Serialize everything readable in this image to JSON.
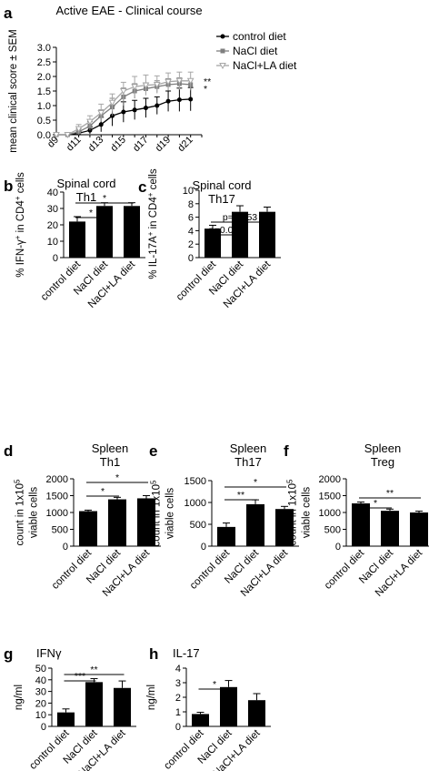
{
  "colors": {
    "black": "#000000",
    "grey1": "#7f7f7f",
    "grey2": "#a6a6a6"
  },
  "chart_data": [
    {
      "id": "a",
      "type": "line",
      "panel_label": "a",
      "title": "Active EAE - Clinical course",
      "ylabel": "mean clinical score ± SEM",
      "ylim": [
        0,
        3
      ],
      "yticks": [
        "0.0",
        "0.5",
        "1.0",
        "1.5",
        "2.0",
        "2.5",
        "3.0"
      ],
      "x": [
        9,
        10,
        11,
        12,
        13,
        14,
        15,
        16,
        17,
        18,
        19,
        20,
        21
      ],
      "xtick_days": [
        9,
        11,
        13,
        15,
        17,
        19,
        21
      ],
      "xtick_labels": [
        "d9",
        "d11",
        "d13",
        "d15",
        "d17",
        "d19",
        "d21"
      ],
      "series": [
        {
          "name": "control diet",
          "marker": "circle",
          "color": "#000000",
          "values": [
            0,
            0,
            0.05,
            0.15,
            0.35,
            0.65,
            0.78,
            0.85,
            0.92,
            1.0,
            1.15,
            1.2,
            1.22
          ],
          "errors": [
            0,
            0,
            0.05,
            0.12,
            0.25,
            0.35,
            0.35,
            0.33,
            0.33,
            0.3,
            0.35,
            0.4,
            0.4
          ]
        },
        {
          "name": "NaCl diet",
          "marker": "square",
          "color": "#7f7f7f",
          "values": [
            0,
            0,
            0.1,
            0.3,
            0.65,
            0.95,
            1.3,
            1.5,
            1.58,
            1.65,
            1.72,
            1.75,
            1.72
          ],
          "errors": [
            0,
            0,
            0.1,
            0.15,
            0.2,
            0.3,
            0.3,
            0.25,
            0.2,
            0.2,
            0.2,
            0.2,
            0.2
          ]
        },
        {
          "name": "NaCl+LA diet",
          "marker": "triangle-down",
          "color": "#a6a6a6",
          "values": [
            0,
            0,
            0.2,
            0.45,
            0.75,
            1.1,
            1.5,
            1.65,
            1.7,
            1.72,
            1.82,
            1.85,
            1.85
          ],
          "errors": [
            0,
            0,
            0.15,
            0.2,
            0.3,
            0.3,
            0.3,
            0.35,
            0.35,
            0.3,
            0.3,
            0.3,
            0.3
          ]
        }
      ],
      "significance": [
        "**",
        "*"
      ]
    },
    {
      "id": "b",
      "type": "bar",
      "panel_label": "b",
      "title": "Spinal cord",
      "subtitle": "Th1",
      "ylabel_pre": "% IFN-γ",
      "ylabel_sup": "+",
      "ylabel_mid": " in CD4",
      "ylabel_sup2": "+",
      "ylabel_post": " cells",
      "ylim": [
        0,
        40
      ],
      "yticks": [
        "0",
        "10",
        "20",
        "30",
        "40"
      ],
      "categories": [
        "control diet",
        "NaCl diet",
        "NaCl+LA diet"
      ],
      "values": [
        22,
        31.5,
        31.5
      ],
      "errors": [
        3,
        2,
        2
      ],
      "comparisons": [
        {
          "from": 0,
          "to": 1,
          "label": "*"
        },
        {
          "from": 0,
          "to": 2,
          "label": "*"
        }
      ]
    },
    {
      "id": "c",
      "type": "bar",
      "panel_label": "c",
      "title": "Spinal cord",
      "subtitle": "Th17",
      "ylabel_pre": "% IL-17A",
      "ylabel_sup": "+",
      "ylabel_mid": " in CD4",
      "ylabel_sup2": "+",
      "ylabel_post": " cells",
      "ylim": [
        0,
        10
      ],
      "yticks": [
        "0",
        "2",
        "4",
        "6",
        "8",
        "10"
      ],
      "categories": [
        "control diet",
        "NaCl diet",
        "NaCl+LA diet"
      ],
      "values": [
        4.3,
        6.8,
        6.8
      ],
      "errors": [
        0.5,
        0.9,
        0.7
      ],
      "comparisons": [
        {
          "from": 0,
          "to": 1,
          "label": "p=0.058"
        },
        {
          "from": 0,
          "to": 2,
          "label": "p=0.053"
        }
      ]
    },
    {
      "id": "d",
      "type": "bar",
      "panel_label": "d",
      "title": "Spleen",
      "subtitle": "Th1",
      "ylabel_l1": "count in 1x10",
      "ylabel_sup": "5",
      "ylabel_l2": "viable cells",
      "ylim": [
        0,
        2000
      ],
      "yticks": [
        "0",
        "500",
        "1000",
        "1500",
        "2000"
      ],
      "categories": [
        "control diet",
        "NaCl diet",
        "NaCl+LA diet"
      ],
      "values": [
        1040,
        1390,
        1420
      ],
      "errors": [
        30,
        60,
        80
      ],
      "comparisons": [
        {
          "from": 0,
          "to": 1,
          "label": "*"
        },
        {
          "from": 0,
          "to": 2,
          "label": "*"
        }
      ]
    },
    {
      "id": "e",
      "type": "bar",
      "panel_label": "e",
      "title": "Spleen",
      "subtitle": "Th17",
      "ylabel_l1": "count in 1x10",
      "ylabel_sup": "5",
      "ylabel_l2": "viable cells",
      "ylim": [
        0,
        1500
      ],
      "yticks": [
        "0",
        "500",
        "1000",
        "1500"
      ],
      "categories": [
        "control diet",
        "NaCl diet",
        "NaCl+LA diet"
      ],
      "values": [
        440,
        960,
        850
      ],
      "errors": [
        90,
        100,
        60
      ],
      "comparisons": [
        {
          "from": 0,
          "to": 1,
          "label": "**"
        },
        {
          "from": 0,
          "to": 2,
          "label": "*"
        }
      ]
    },
    {
      "id": "f",
      "type": "bar",
      "panel_label": "f",
      "title": "Spleen",
      "subtitle": "Treg",
      "ylabel_l1": "count in 1x10",
      "ylabel_sup": "5",
      "ylabel_l2": "viable cells",
      "ylim": [
        0,
        2000
      ],
      "yticks": [
        "0",
        "500",
        "1000",
        "1500",
        "2000"
      ],
      "categories": [
        "control diet",
        "NaCl diet",
        "NaCl+LA diet"
      ],
      "values": [
        1270,
        1050,
        1000
      ],
      "errors": [
        40,
        50,
        40
      ],
      "comparisons": [
        {
          "from": 0,
          "to": 1,
          "label": "*"
        },
        {
          "from": 0,
          "to": 2,
          "label": "**"
        }
      ]
    },
    {
      "id": "g",
      "type": "bar",
      "panel_label": "g",
      "title": "IFNγ",
      "subtitle": "",
      "ylabel_l1": "ng/ml",
      "ylim": [
        0,
        50
      ],
      "yticks": [
        "0",
        "10",
        "20",
        "30",
        "40",
        "50"
      ],
      "categories": [
        "control diet",
        "NaCl diet",
        "NaCl+LA diet"
      ],
      "values": [
        12,
        38,
        33
      ],
      "errors": [
        3,
        3,
        6
      ],
      "comparisons": [
        {
          "from": 0,
          "to": 1,
          "label": "***"
        },
        {
          "from": 0,
          "to": 2,
          "label": "**"
        }
      ]
    },
    {
      "id": "h",
      "type": "bar",
      "panel_label": "h",
      "title": "IL-17",
      "subtitle": "",
      "ylabel_l1": "ng/ml",
      "ylim": [
        0,
        4
      ],
      "yticks": [
        "0",
        "1",
        "2",
        "3",
        "4"
      ],
      "categories": [
        "control diet",
        "NaCl diet",
        "NaCl+LA diet"
      ],
      "values": [
        0.85,
        2.7,
        1.8
      ],
      "errors": [
        0.12,
        0.45,
        0.45
      ],
      "comparisons": [
        {
          "from": 0,
          "to": 1,
          "label": "*"
        }
      ]
    }
  ]
}
